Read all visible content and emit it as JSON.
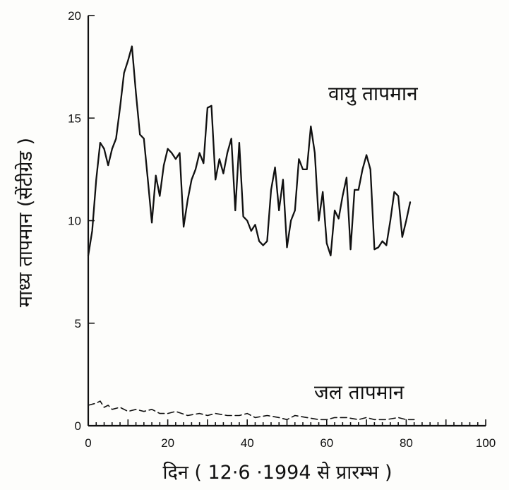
{
  "chart_data": {
    "type": "line",
    "title": "",
    "xlabel": "दिन ( 12·6 ·1994 से प्रारम्भ )",
    "ylabel": "माध्य तापमान (सेंटीग्रेड )",
    "xlim": [
      0,
      100
    ],
    "ylim": [
      0,
      20
    ],
    "x_ticks": [
      0,
      20,
      40,
      60,
      80,
      100
    ],
    "y_ticks": [
      0,
      5,
      10,
      15,
      20
    ],
    "grid": false,
    "legend": "none",
    "series": [
      {
        "name": "वायु तापमान",
        "style": "solid",
        "x": [
          0,
          1,
          2,
          3,
          4,
          5,
          6,
          7,
          8,
          9,
          10,
          11,
          12,
          13,
          14,
          15,
          16,
          17,
          18,
          19,
          20,
          21,
          22,
          23,
          24,
          25,
          26,
          27,
          28,
          29,
          30,
          31,
          32,
          33,
          34,
          35,
          36,
          37,
          38,
          39,
          40,
          41,
          42,
          43,
          44,
          45,
          46,
          47,
          48,
          49,
          50,
          51,
          52,
          53,
          54,
          55,
          56,
          57,
          58,
          59,
          60,
          61,
          62,
          63,
          64,
          65,
          66,
          67,
          68,
          69,
          70,
          71,
          72,
          73,
          74,
          75,
          76,
          77,
          78,
          79,
          80,
          81
        ],
        "values": [
          8.3,
          9.5,
          12.0,
          13.8,
          13.5,
          12.7,
          13.5,
          14.0,
          15.5,
          17.2,
          17.8,
          18.5,
          16.2,
          14.2,
          14.0,
          12.0,
          9.9,
          12.2,
          11.2,
          12.7,
          13.5,
          13.3,
          13.0,
          13.3,
          9.7,
          11.0,
          12.0,
          12.5,
          13.3,
          12.8,
          15.5,
          15.6,
          12.0,
          13.0,
          12.3,
          13.3,
          14.0,
          10.5,
          13.8,
          10.2,
          10.0,
          9.5,
          9.8,
          9.0,
          8.8,
          9.0,
          11.5,
          12.6,
          10.5,
          12.0,
          8.7,
          10.0,
          10.5,
          13.0,
          12.5,
          12.5,
          14.6,
          13.3,
          10.0,
          11.4,
          8.9,
          8.3,
          10.5,
          10.1,
          11.2,
          12.1,
          8.6,
          11.5,
          11.5,
          12.5,
          13.2,
          12.5,
          8.6,
          8.7,
          9.0,
          8.8,
          10.0,
          11.4,
          11.2,
          9.2,
          10.0,
          10.9
        ]
      },
      {
        "name": "जल तापमान",
        "style": "dashed",
        "x": [
          0,
          2,
          3,
          4,
          5,
          6,
          8,
          10,
          12,
          14,
          16,
          18,
          20,
          22,
          25,
          28,
          30,
          32,
          35,
          38,
          40,
          42,
          45,
          48,
          50,
          52,
          55,
          58,
          60,
          62,
          65,
          68,
          70,
          72,
          75,
          78,
          80,
          82
        ],
        "values": [
          1.0,
          1.1,
          1.2,
          0.9,
          1.0,
          0.8,
          0.9,
          0.7,
          0.8,
          0.7,
          0.8,
          0.6,
          0.6,
          0.7,
          0.5,
          0.6,
          0.5,
          0.6,
          0.5,
          0.5,
          0.6,
          0.4,
          0.5,
          0.4,
          0.3,
          0.5,
          0.4,
          0.3,
          0.3,
          0.4,
          0.4,
          0.3,
          0.4,
          0.3,
          0.3,
          0.4,
          0.3,
          0.3
        ]
      }
    ]
  }
}
